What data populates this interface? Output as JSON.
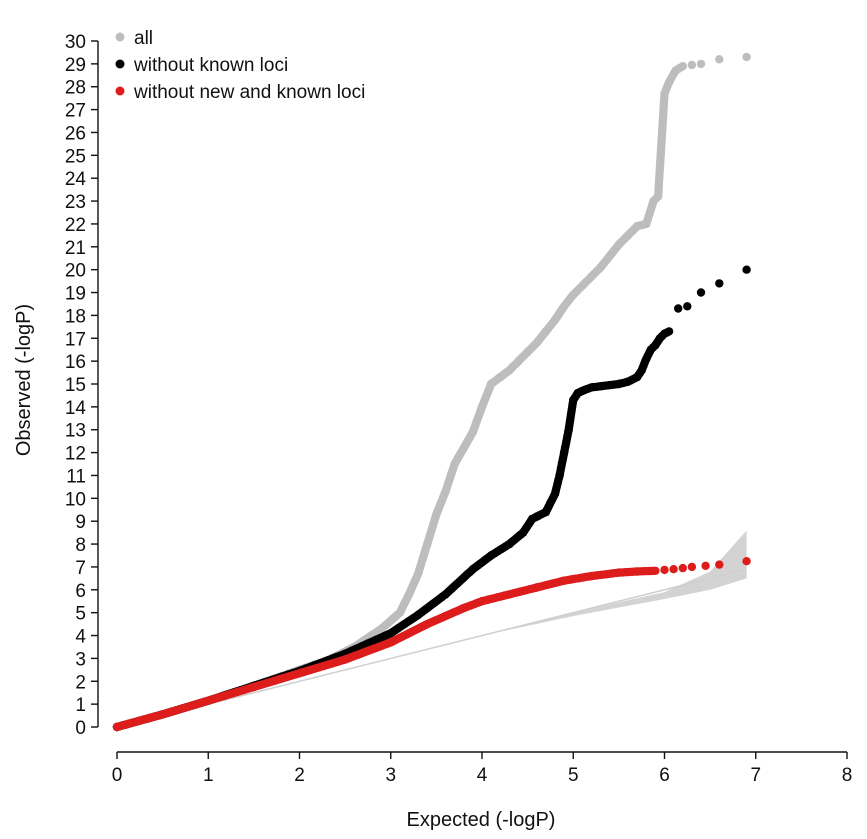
{
  "chart_data": {
    "type": "scatter",
    "xlabel": "Expected (-logP)",
    "ylabel": "Observed (-logP)",
    "xlim": [
      0,
      8
    ],
    "ylim": [
      0,
      30
    ],
    "x_ticks": [
      "0",
      "1",
      "2",
      "3",
      "4",
      "5",
      "6",
      "7",
      "8"
    ],
    "y_ticks": [
      "0",
      "1",
      "2",
      "3",
      "4",
      "5",
      "6",
      "7",
      "8",
      "9",
      "10",
      "11",
      "12",
      "13",
      "14",
      "15",
      "16",
      "17",
      "18",
      "19",
      "20",
      "21",
      "22",
      "23",
      "24",
      "25",
      "26",
      "27",
      "28",
      "29",
      "30"
    ],
    "grid": false,
    "legend_position": "top-left",
    "confidence_band": {
      "color": "#d3d3d3",
      "x": [
        0,
        1,
        2,
        3,
        4,
        5,
        6,
        6.5,
        6.9
      ],
      "lower": [
        0,
        1,
        2,
        3,
        4,
        4.85,
        5.6,
        6.0,
        6.5
      ],
      "upper": [
        0,
        1,
        2,
        3,
        4,
        5.0,
        5.9,
        6.8,
        8.6
      ]
    },
    "series": [
      {
        "name": "all",
        "color": "#bdbdbd",
        "x": [
          0,
          0.5,
          1,
          1.5,
          2,
          2.3,
          2.6,
          2.9,
          3.1,
          3.2,
          3.3,
          3.4,
          3.5,
          3.6,
          3.7,
          3.8,
          3.9,
          4.0,
          4.1,
          4.2,
          4.3,
          4.4,
          4.5,
          4.6,
          4.7,
          4.8,
          4.9,
          5.0,
          5.1,
          5.2,
          5.3,
          5.4,
          5.5,
          5.6,
          5.7,
          5.8,
          5.88,
          5.93,
          6.0,
          6.05,
          6.12,
          6.2,
          6.3,
          6.4,
          6.6,
          6.9
        ],
        "y": [
          0,
          0.55,
          1.15,
          1.8,
          2.5,
          2.9,
          3.5,
          4.3,
          5.0,
          5.8,
          6.7,
          8.0,
          9.3,
          10.3,
          11.5,
          12.2,
          12.9,
          14.0,
          15.0,
          15.3,
          15.6,
          16.0,
          16.4,
          16.8,
          17.3,
          17.8,
          18.4,
          18.9,
          19.3,
          19.7,
          20.1,
          20.6,
          21.1,
          21.5,
          21.9,
          22.0,
          23.0,
          23.2,
          27.7,
          28.2,
          28.7,
          28.9,
          28.95,
          29.0,
          29.2,
          29.3
        ]
      },
      {
        "name": "without known loci",
        "color": "#000000",
        "x": [
          0,
          0.5,
          1,
          1.5,
          2,
          2.5,
          3,
          3.3,
          3.6,
          3.9,
          4.1,
          4.3,
          4.45,
          4.55,
          4.6,
          4.7,
          4.8,
          4.85,
          4.9,
          4.95,
          5.0,
          5.05,
          5.1,
          5.2,
          5.3,
          5.4,
          5.5,
          5.6,
          5.7,
          5.75,
          5.8,
          5.85,
          5.9,
          5.95,
          6.0,
          6.05,
          6.15,
          6.25,
          6.4,
          6.6,
          6.9
        ],
        "y": [
          0,
          0.55,
          1.15,
          1.8,
          2.45,
          3.2,
          4.1,
          4.9,
          5.8,
          6.9,
          7.5,
          8.0,
          8.5,
          9.1,
          9.2,
          9.4,
          10.2,
          11.0,
          12.0,
          13.0,
          14.3,
          14.6,
          14.7,
          14.85,
          14.9,
          14.95,
          15.0,
          15.1,
          15.3,
          15.6,
          16.1,
          16.5,
          16.7,
          17.0,
          17.2,
          17.3,
          18.3,
          18.4,
          19.0,
          19.4,
          20.0
        ]
      },
      {
        "name": "without new and known loci",
        "color": "#dd1c1c",
        "x": [
          0,
          0.5,
          1,
          1.5,
          2,
          2.5,
          3,
          3.4,
          3.8,
          4.0,
          4.3,
          4.6,
          4.9,
          5.2,
          5.5,
          5.7,
          5.9,
          6.0,
          6.1,
          6.2,
          6.3,
          6.45,
          6.6,
          6.9
        ],
        "y": [
          0,
          0.55,
          1.15,
          1.75,
          2.35,
          2.95,
          3.7,
          4.5,
          5.2,
          5.5,
          5.8,
          6.1,
          6.4,
          6.6,
          6.75,
          6.8,
          6.83,
          6.87,
          6.9,
          6.95,
          7.0,
          7.05,
          7.1,
          7.25
        ]
      }
    ]
  }
}
